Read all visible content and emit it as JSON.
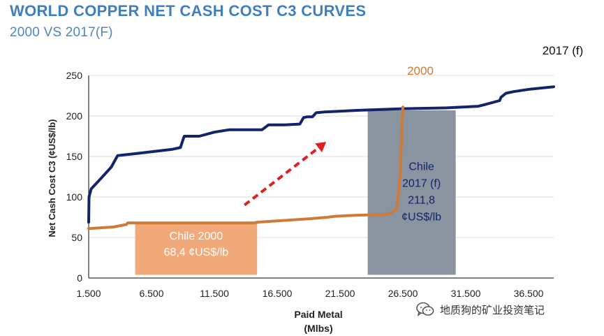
{
  "header": {
    "title": "WORLD COPPER NET CASH COST C3 CURVES",
    "subtitle": "2000 VS 2017(F)"
  },
  "watermark": {
    "text": "地质狗的矿业投资笔记",
    "icon": "wechat-icon"
  },
  "colors": {
    "series_2017": "#13246b",
    "series_2000": "#cf7a36",
    "chile2000_box": "#f2a97a",
    "chile2017_box": "#8a93a0",
    "arrow": "#e02020",
    "axis_text": "#222222",
    "grid": "#dedede"
  },
  "chart_data": {
    "type": "line",
    "title": "WORLD COPPER NET CASH COST C3 CURVES",
    "subtitle": "2000 VS 2017(F)",
    "xlabel": "Paid Metal",
    "xlabel_unit": "(Mlbs)",
    "ylabel": "Net Cash Cost C3 (¢US$/lb)",
    "xlim": [
      1500,
      38500
    ],
    "ylim": [
      0,
      250
    ],
    "x_ticks": [
      1500,
      6500,
      11500,
      16500,
      21500,
      26500,
      31500,
      36500
    ],
    "x_tick_labels": [
      "1.500",
      "6.500",
      "11.500",
      "16.500",
      "21.500",
      "26.500",
      "31.500",
      "36.500"
    ],
    "y_ticks": [
      0,
      50,
      100,
      150,
      200,
      250
    ],
    "y_tick_labels": [
      "0",
      "50",
      "100",
      "150",
      "200",
      "250"
    ],
    "grid": true,
    "series": [
      {
        "name": "2017 (f)",
        "x": [
          1500,
          1530,
          1700,
          2600,
          3300,
          3800,
          5500,
          8200,
          8800,
          9100,
          9300,
          10300,
          11500,
          12700,
          13300,
          15300,
          15800,
          17100,
          18300,
          18600,
          18900,
          19300,
          19600,
          20300,
          23000,
          26500,
          30000,
          32500,
          33000,
          34200,
          34300,
          34700,
          35300,
          36600,
          38500
        ],
        "y": [
          69,
          100,
          110,
          125,
          137,
          151,
          154,
          159,
          161,
          175,
          175,
          175,
          180,
          183,
          183,
          183,
          189,
          189,
          190,
          198,
          199,
          199,
          204,
          205,
          207,
          209,
          210,
          212,
          214,
          219,
          223,
          228,
          230,
          233,
          236
        ]
      },
      {
        "name": "2000",
        "x": [
          1500,
          3500,
          4500,
          4600,
          7000,
          10000,
          14600,
          15000,
          17000,
          19000,
          20500,
          21000,
          22000,
          24000,
          25100,
          25500,
          25900,
          26000,
          26100,
          26300,
          26400,
          26500
        ],
        "y": [
          61,
          63,
          66,
          68,
          68,
          68,
          68,
          69,
          71,
          73,
          75,
          76,
          77,
          78,
          78,
          80,
          84,
          85,
          97,
          130,
          180,
          211
        ]
      }
    ],
    "boxes": [
      {
        "name": "chile-2000",
        "label_lines": [
          "Chile 2000",
          "68,4 ¢US$/lb"
        ],
        "x_range": [
          5200,
          14900
        ],
        "y_range": [
          4,
          68
        ]
      },
      {
        "name": "chile-2017",
        "label_lines": [
          "Chile",
          "2017 (f)",
          "211,8",
          "¢US$/lb"
        ],
        "x_range": [
          23700,
          30700
        ],
        "y_range": [
          4,
          207
        ]
      }
    ],
    "annotations": {
      "series_2017_label": "2017 (f)",
      "series_2000_label": "2000"
    },
    "arrow": {
      "from": [
        13900,
        90
      ],
      "to": [
        20400,
        168
      ]
    }
  }
}
